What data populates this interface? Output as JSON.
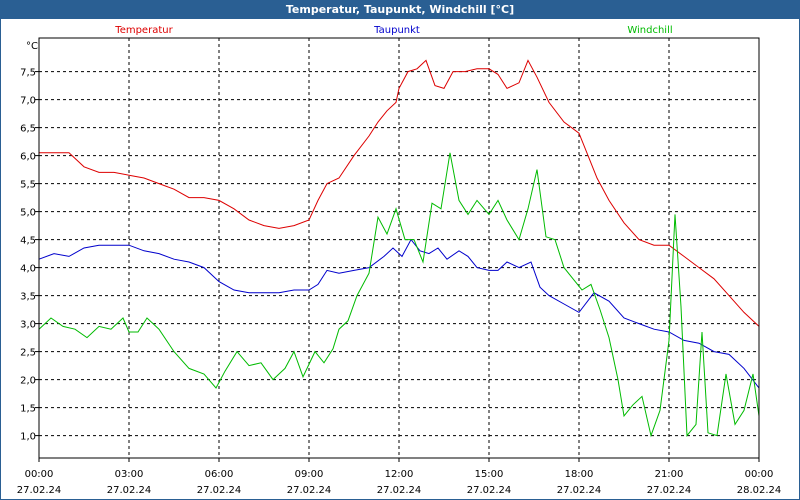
{
  "window": {
    "title": "Temperatur, Taupunkt, Windchill [°C]"
  },
  "chart_data": {
    "type": "line",
    "title": "Temperatur, Taupunkt, Windchill [°C]",
    "ylabel": "°C",
    "xlabel": "",
    "ylim": [
      0.6,
      8.1
    ],
    "xlim_hours": [
      0,
      24
    ],
    "grid": true,
    "y_ticks": [
      "1,0",
      "1,5",
      "2,0",
      "2,5",
      "3,0",
      "3,5",
      "4,0",
      "4,5",
      "5,0",
      "5,5",
      "6,0",
      "6,5",
      "7,0",
      "7,5"
    ],
    "x_ticks": [
      {
        "time": "00:00",
        "date": "27.02.24"
      },
      {
        "time": "03:00",
        "date": "27.02.24"
      },
      {
        "time": "06:00",
        "date": "27.02.24"
      },
      {
        "time": "09:00",
        "date": "27.02.24"
      },
      {
        "time": "12:00",
        "date": "27.02.24"
      },
      {
        "time": "15:00",
        "date": "27.02.24"
      },
      {
        "time": "18:00",
        "date": "27.02.24"
      },
      {
        "time": "21:00",
        "date": "27.02.24"
      },
      {
        "time": "00:00",
        "date": "28.02.24"
      }
    ],
    "series": [
      {
        "name": "Temperatur",
        "color": "#dd0000",
        "points": [
          [
            0,
            6.05
          ],
          [
            0.5,
            6.05
          ],
          [
            1,
            6.05
          ],
          [
            1.5,
            5.8
          ],
          [
            2,
            5.7
          ],
          [
            2.5,
            5.7
          ],
          [
            3,
            5.65
          ],
          [
            3.5,
            5.6
          ],
          [
            4,
            5.5
          ],
          [
            4.5,
            5.4
          ],
          [
            5,
            5.25
          ],
          [
            5.5,
            5.25
          ],
          [
            6,
            5.2
          ],
          [
            6.5,
            5.05
          ],
          [
            7,
            4.85
          ],
          [
            7.5,
            4.75
          ],
          [
            8,
            4.7
          ],
          [
            8.5,
            4.75
          ],
          [
            9,
            4.85
          ],
          [
            9.3,
            5.2
          ],
          [
            9.6,
            5.5
          ],
          [
            10,
            5.6
          ],
          [
            10.5,
            6.0
          ],
          [
            11,
            6.35
          ],
          [
            11.3,
            6.6
          ],
          [
            11.6,
            6.8
          ],
          [
            11.9,
            6.95
          ],
          [
            12,
            7.2
          ],
          [
            12.3,
            7.5
          ],
          [
            12.6,
            7.55
          ],
          [
            12.9,
            7.7
          ],
          [
            13.2,
            7.25
          ],
          [
            13.5,
            7.2
          ],
          [
            13.8,
            7.5
          ],
          [
            14.2,
            7.5
          ],
          [
            14.6,
            7.55
          ],
          [
            15,
            7.55
          ],
          [
            15.3,
            7.45
          ],
          [
            15.6,
            7.2
          ],
          [
            16,
            7.3
          ],
          [
            16.3,
            7.7
          ],
          [
            16.6,
            7.4
          ],
          [
            17,
            6.95
          ],
          [
            17.5,
            6.6
          ],
          [
            18,
            6.4
          ],
          [
            18.3,
            6.0
          ],
          [
            18.6,
            5.6
          ],
          [
            19,
            5.2
          ],
          [
            19.5,
            4.8
          ],
          [
            20,
            4.5
          ],
          [
            20.5,
            4.4
          ],
          [
            21,
            4.4
          ],
          [
            21.5,
            4.2
          ],
          [
            22,
            4.0
          ],
          [
            22.5,
            3.8
          ],
          [
            23,
            3.5
          ],
          [
            23.5,
            3.2
          ],
          [
            24,
            2.95
          ]
        ]
      },
      {
        "name": "Taupunkt",
        "color": "#0000cc",
        "points": [
          [
            0,
            4.15
          ],
          [
            0.5,
            4.25
          ],
          [
            1,
            4.2
          ],
          [
            1.5,
            4.35
          ],
          [
            2,
            4.4
          ],
          [
            2.5,
            4.4
          ],
          [
            3,
            4.4
          ],
          [
            3.5,
            4.3
          ],
          [
            4,
            4.25
          ],
          [
            4.5,
            4.15
          ],
          [
            5,
            4.1
          ],
          [
            5.5,
            4.0
          ],
          [
            6,
            3.75
          ],
          [
            6.5,
            3.6
          ],
          [
            7,
            3.55
          ],
          [
            7.5,
            3.55
          ],
          [
            8,
            3.55
          ],
          [
            8.5,
            3.6
          ],
          [
            9,
            3.6
          ],
          [
            9.3,
            3.7
          ],
          [
            9.6,
            3.95
          ],
          [
            10,
            3.9
          ],
          [
            10.5,
            3.95
          ],
          [
            11,
            4.0
          ],
          [
            11.5,
            4.2
          ],
          [
            11.8,
            4.35
          ],
          [
            12.1,
            4.2
          ],
          [
            12.4,
            4.5
          ],
          [
            12.7,
            4.3
          ],
          [
            13,
            4.25
          ],
          [
            13.3,
            4.35
          ],
          [
            13.6,
            4.15
          ],
          [
            14,
            4.3
          ],
          [
            14.3,
            4.2
          ],
          [
            14.6,
            4.0
          ],
          [
            15,
            3.95
          ],
          [
            15.3,
            3.95
          ],
          [
            15.6,
            4.1
          ],
          [
            16,
            4.0
          ],
          [
            16.4,
            4.1
          ],
          [
            16.7,
            3.65
          ],
          [
            17,
            3.5
          ],
          [
            17.5,
            3.35
          ],
          [
            18,
            3.2
          ],
          [
            18.5,
            3.55
          ],
          [
            19,
            3.4
          ],
          [
            19.5,
            3.1
          ],
          [
            20,
            3.0
          ],
          [
            20.5,
            2.9
          ],
          [
            21,
            2.85
          ],
          [
            21.5,
            2.7
          ],
          [
            22,
            2.65
          ],
          [
            22.5,
            2.5
          ],
          [
            23,
            2.45
          ],
          [
            23.5,
            2.2
          ],
          [
            24,
            1.85
          ]
        ]
      },
      {
        "name": "Windchill",
        "color": "#00bb00",
        "points": [
          [
            0,
            2.9
          ],
          [
            0.4,
            3.1
          ],
          [
            0.8,
            2.95
          ],
          [
            1.2,
            2.9
          ],
          [
            1.6,
            2.75
          ],
          [
            2,
            2.95
          ],
          [
            2.4,
            2.9
          ],
          [
            2.8,
            3.1
          ],
          [
            3,
            2.85
          ],
          [
            3.3,
            2.85
          ],
          [
            3.6,
            3.1
          ],
          [
            4,
            2.9
          ],
          [
            4.5,
            2.5
          ],
          [
            5,
            2.2
          ],
          [
            5.5,
            2.1
          ],
          [
            5.9,
            1.85
          ],
          [
            6.2,
            2.15
          ],
          [
            6.6,
            2.5
          ],
          [
            7,
            2.25
          ],
          [
            7.4,
            2.3
          ],
          [
            7.8,
            2.0
          ],
          [
            8.2,
            2.2
          ],
          [
            8.5,
            2.5
          ],
          [
            8.8,
            2.05
          ],
          [
            9.2,
            2.5
          ],
          [
            9.5,
            2.3
          ],
          [
            9.8,
            2.55
          ],
          [
            10,
            2.9
          ],
          [
            10.3,
            3.05
          ],
          [
            10.6,
            3.5
          ],
          [
            11,
            3.9
          ],
          [
            11.3,
            4.9
          ],
          [
            11.6,
            4.6
          ],
          [
            11.9,
            5.05
          ],
          [
            12.2,
            4.5
          ],
          [
            12.5,
            4.5
          ],
          [
            12.8,
            4.1
          ],
          [
            13.1,
            5.15
          ],
          [
            13.4,
            5.05
          ],
          [
            13.7,
            6.05
          ],
          [
            14,
            5.2
          ],
          [
            14.3,
            4.95
          ],
          [
            14.6,
            5.2
          ],
          [
            15,
            4.95
          ],
          [
            15.3,
            5.2
          ],
          [
            15.6,
            4.85
          ],
          [
            16,
            4.5
          ],
          [
            16.3,
            5.05
          ],
          [
            16.6,
            5.75
          ],
          [
            16.9,
            4.55
          ],
          [
            17.2,
            4.5
          ],
          [
            17.5,
            4.0
          ],
          [
            17.8,
            3.8
          ],
          [
            18.1,
            3.6
          ],
          [
            18.4,
            3.7
          ],
          [
            18.7,
            3.25
          ],
          [
            19,
            2.75
          ],
          [
            19.3,
            2.0
          ],
          [
            19.5,
            1.35
          ],
          [
            19.8,
            1.55
          ],
          [
            20.1,
            1.7
          ],
          [
            20.4,
            1.0
          ],
          [
            20.7,
            1.45
          ],
          [
            21,
            2.7
          ],
          [
            21.2,
            4.95
          ],
          [
            21.4,
            3.3
          ],
          [
            21.6,
            1.0
          ],
          [
            21.9,
            1.2
          ],
          [
            22.1,
            2.85
          ],
          [
            22.3,
            1.05
          ],
          [
            22.6,
            1.0
          ],
          [
            22.9,
            2.1
          ],
          [
            23.2,
            1.2
          ],
          [
            23.5,
            1.45
          ],
          [
            23.8,
            2.1
          ],
          [
            24,
            1.35
          ]
        ]
      }
    ]
  }
}
